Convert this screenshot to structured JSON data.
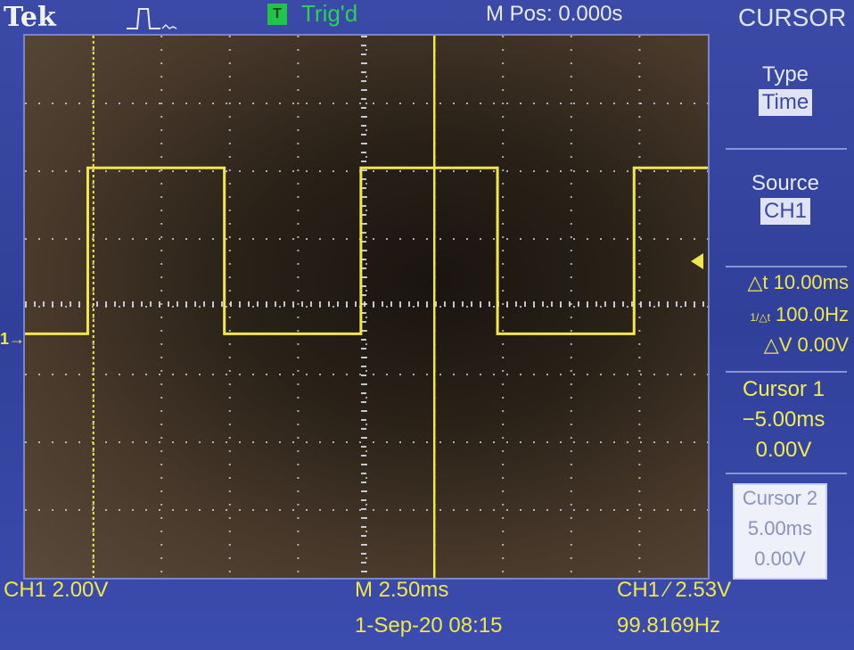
{
  "header": {
    "brand": "Tek",
    "trigger_box": "T",
    "trigger_status": "Trig'd",
    "horizontal_position": "M Pos: 0.000s",
    "menu_title": "CURSOR"
  },
  "side_menu": {
    "type_label": "Type",
    "type_value": "Time",
    "source_label": "Source",
    "source_value": "CH1",
    "delta_t": "△t 10.00ms",
    "freq": "100.0Hz",
    "freq_prefix": "1/△t",
    "delta_v": "△V 0.00V",
    "cursor1_label": "Cursor 1",
    "cursor1_time": "−5.00ms",
    "cursor1_volt": "0.00V",
    "cursor2_label": "Cursor 2",
    "cursor2_time": "5.00ms",
    "cursor2_volt": "0.00V"
  },
  "bottom": {
    "ch1_scale": "CH1  2.00V",
    "timebase": "M 2.50ms",
    "datetime": "1-Sep-20 08:15",
    "trigger_setting": "CH1 ∕ 2.53V",
    "measured_freq": "99.8169Hz"
  },
  "channel_marker": "1→",
  "colors": {
    "trace": "#f0e74a",
    "trig_green": "#21c34a",
    "panel_blue": "#3a4aa6"
  }
}
